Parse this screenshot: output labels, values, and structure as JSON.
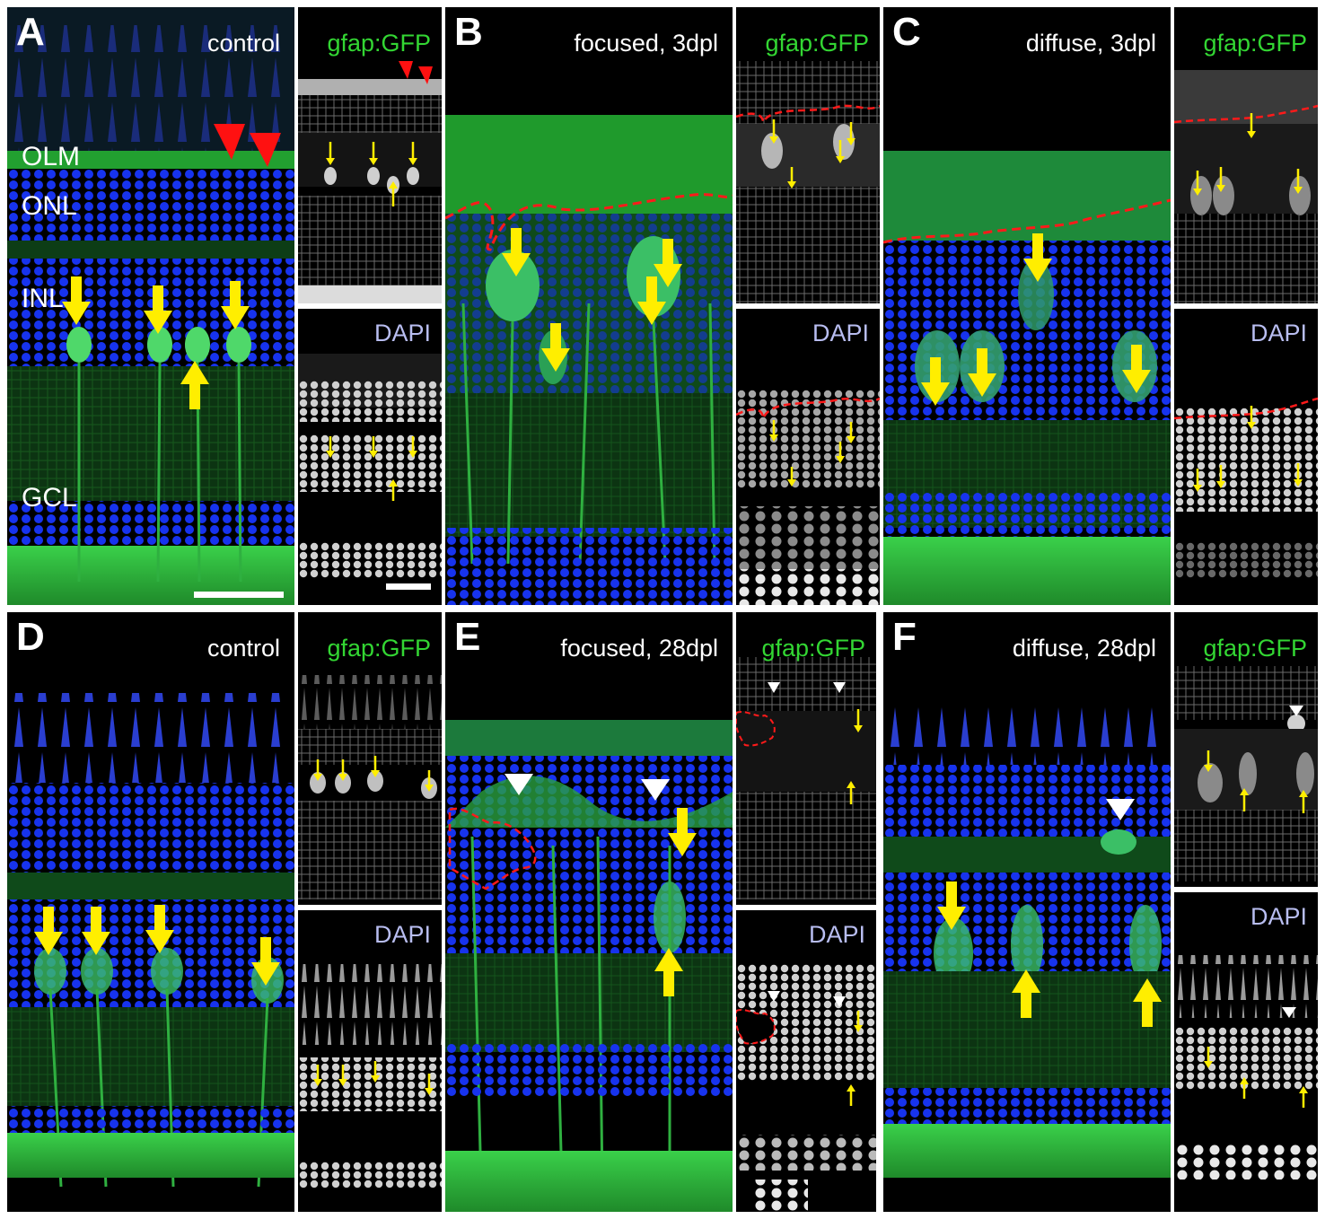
{
  "figure": {
    "panels": [
      {
        "letter": "A",
        "condition": "control"
      },
      {
        "letter": "B",
        "condition": "focused, 3dpl"
      },
      {
        "letter": "C",
        "condition": "diffuse, 3dpl"
      },
      {
        "letter": "D",
        "condition": "control"
      },
      {
        "letter": "E",
        "condition": "focused, 28dpl"
      },
      {
        "letter": "F",
        "condition": "diffuse, 28dpl"
      }
    ],
    "channel_labels": {
      "gfp": "gfap:GFP",
      "dapi": "DAPI"
    },
    "layer_labels": {
      "olm": "OLM",
      "onl": "ONL",
      "inl": "INL",
      "gcl": "GCL"
    },
    "colors": {
      "gfp": "#33d633",
      "dapi_label": "#b8bdf0",
      "nuclei": "#1a2cff",
      "arrow": "#ffee00",
      "lesion": "#ff1a1a",
      "arrowhead_red": "#ff1111",
      "arrowhead_white": "#ffffff"
    }
  }
}
